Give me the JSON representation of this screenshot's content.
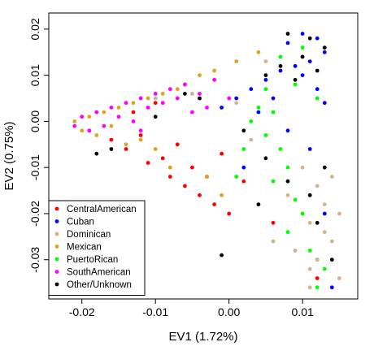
{
  "chart_data": {
    "type": "scatter",
    "xlabel": "EV1 (1.72%)",
    "ylabel": "EV2 (0.75%)",
    "xlim": [
      -0.0245,
      0.0175
    ],
    "ylim": [
      -0.0385,
      0.0235
    ],
    "xticks": [
      {
        "value": -0.02,
        "label": "-0.02"
      },
      {
        "value": -0.01,
        "label": "-0.01"
      },
      {
        "value": 0.0,
        "label": "0.00"
      },
      {
        "value": 0.01,
        "label": "0.01"
      }
    ],
    "yticks": [
      {
        "value": 0.02,
        "label": "0.02"
      },
      {
        "value": 0.01,
        "label": "0.01"
      },
      {
        "value": 0.0,
        "label": "0.00"
      },
      {
        "value": -0.01,
        "label": "-0.01"
      },
      {
        "value": -0.02,
        "label": "-0.02"
      },
      {
        "value": -0.03,
        "label": "-0.03"
      }
    ],
    "grid": false,
    "legend_position": "bottom-left",
    "series": [
      {
        "name": "CentralAmerican",
        "color": "#ff0000",
        "points": [
          [
            -0.019,
            -0.002
          ],
          [
            -0.016,
            -0.004
          ],
          [
            -0.014,
            -0.006
          ],
          [
            -0.012,
            -0.003
          ],
          [
            -0.011,
            -0.009
          ],
          [
            -0.009,
            -0.008
          ],
          [
            -0.008,
            -0.012
          ],
          [
            -0.007,
            -0.005
          ],
          [
            -0.006,
            -0.014
          ],
          [
            -0.005,
            -0.01
          ],
          [
            -0.004,
            -0.016
          ],
          [
            -0.003,
            -0.012
          ],
          [
            -0.002,
            -0.018
          ],
          [
            -0.001,
            -0.007
          ],
          [
            0.0,
            -0.02
          ],
          [
            0.002,
            -0.013
          ],
          [
            0.006,
            -0.022
          ],
          [
            0.012,
            -0.034
          ],
          [
            -0.013,
            0.002
          ],
          [
            -0.01,
            0.004
          ]
        ]
      },
      {
        "name": "Cuban",
        "color": "#0000ff",
        "points": [
          [
            0.008,
            0.017
          ],
          [
            0.01,
            0.019
          ],
          [
            0.012,
            0.018
          ],
          [
            0.013,
            0.015
          ],
          [
            0.011,
            0.013
          ],
          [
            0.009,
            0.012
          ],
          [
            0.007,
            0.011
          ],
          [
            0.005,
            0.009
          ],
          [
            0.003,
            0.007
          ],
          [
            0.001,
            0.005
          ],
          [
            -0.001,
            0.003
          ],
          [
            0.004,
            0.002
          ],
          [
            0.006,
            0.005
          ],
          [
            0.01,
            0.01
          ],
          [
            0.012,
            0.007
          ],
          [
            0.013,
            0.004
          ],
          [
            0.008,
            -0.002
          ],
          [
            0.011,
            -0.006
          ],
          [
            0.013,
            -0.02
          ],
          [
            0.012,
            -0.03
          ],
          [
            0.014,
            -0.036
          ],
          [
            0.002,
            -0.01
          ]
        ]
      },
      {
        "name": "Dominican",
        "color": "#d2b48c",
        "points": [
          [
            0.01,
            -0.01
          ],
          [
            0.012,
            -0.014
          ],
          [
            0.013,
            -0.018
          ],
          [
            0.011,
            -0.022
          ],
          [
            0.014,
            -0.026
          ],
          [
            0.012,
            -0.03
          ],
          [
            0.015,
            -0.034
          ],
          [
            0.013,
            -0.024
          ],
          [
            0.01,
            -0.02
          ],
          [
            0.008,
            -0.016
          ],
          [
            0.009,
            -0.028
          ],
          [
            0.006,
            -0.026
          ],
          [
            0.014,
            -0.012
          ],
          [
            0.015,
            -0.02
          ],
          [
            0.011,
            -0.032
          ],
          [
            0.003,
            -0.004
          ],
          [
            0.001,
            0.004
          ],
          [
            -0.005,
            0.006
          ],
          [
            -0.01,
            0.005
          ],
          [
            0.005,
            0.013
          ],
          [
            0.011,
            -0.036
          ]
        ]
      },
      {
        "name": "Mexican",
        "color": "#daa520",
        "points": [
          [
            -0.021,
            0.0
          ],
          [
            -0.02,
            -0.002
          ],
          [
            -0.019,
            0.001
          ],
          [
            -0.018,
            -0.003
          ],
          [
            -0.017,
            0.002
          ],
          [
            -0.016,
            -0.001
          ],
          [
            -0.015,
            0.003
          ],
          [
            -0.014,
            -0.005
          ],
          [
            -0.013,
            0.004
          ],
          [
            -0.012,
            -0.004
          ],
          [
            -0.011,
            0.005
          ],
          [
            -0.01,
            -0.006
          ],
          [
            -0.009,
            0.006
          ],
          [
            -0.008,
            -0.01
          ],
          [
            -0.007,
            0.007
          ],
          [
            -0.006,
            0.008
          ],
          [
            -0.004,
            0.01
          ],
          [
            -0.002,
            0.011
          ],
          [
            0.001,
            0.013
          ],
          [
            0.004,
            0.015
          ],
          [
            -0.003,
            -0.012
          ],
          [
            -0.001,
            -0.016
          ]
        ]
      },
      {
        "name": "PuertoRican",
        "color": "#00ff00",
        "points": [
          [
            0.004,
            0.003
          ],
          [
            0.006,
            0.002
          ],
          [
            0.003,
            0.0
          ],
          [
            0.005,
            -0.003
          ],
          [
            0.007,
            -0.006
          ],
          [
            0.008,
            -0.01
          ],
          [
            0.006,
            -0.013
          ],
          [
            0.009,
            -0.017
          ],
          [
            0.01,
            -0.02
          ],
          [
            0.008,
            -0.024
          ],
          [
            0.011,
            -0.028
          ],
          [
            0.013,
            -0.032
          ],
          [
            0.012,
            -0.036
          ],
          [
            0.002,
            -0.006
          ],
          [
            0.001,
            -0.012
          ],
          [
            0.005,
            0.007
          ],
          [
            0.009,
            0.008
          ],
          [
            0.012,
            0.005
          ],
          [
            0.007,
            0.014
          ],
          [
            0.01,
            0.016
          ]
        ]
      },
      {
        "name": "SouthAmerican",
        "color": "#ff00ff",
        "points": [
          [
            -0.021,
            -0.001
          ],
          [
            -0.02,
            0.001
          ],
          [
            -0.019,
            -0.002
          ],
          [
            -0.018,
            0.002
          ],
          [
            -0.017,
            -0.001
          ],
          [
            -0.016,
            0.003
          ],
          [
            -0.015,
            0.001
          ],
          [
            -0.014,
            0.004
          ],
          [
            -0.013,
            0.0
          ],
          [
            -0.012,
            0.005
          ],
          [
            -0.011,
            0.003
          ],
          [
            -0.01,
            0.006
          ],
          [
            -0.009,
            0.004
          ],
          [
            -0.008,
            0.007
          ],
          [
            -0.007,
            0.005
          ],
          [
            -0.006,
            0.008
          ],
          [
            -0.005,
            0.002
          ],
          [
            -0.004,
            0.006
          ],
          [
            -0.003,
            0.003
          ],
          [
            -0.002,
            0.009
          ],
          [
            0.0,
            0.005
          ],
          [
            -0.012,
            -0.002
          ]
        ]
      },
      {
        "name": "Other/Unknown",
        "color": "#000000",
        "points": [
          [
            0.008,
            0.019
          ],
          [
            0.011,
            0.018
          ],
          [
            0.013,
            0.016
          ],
          [
            0.01,
            0.014
          ],
          [
            0.012,
            0.011
          ],
          [
            0.009,
            0.009
          ],
          [
            0.007,
            0.012
          ],
          [
            -0.006,
            0.006
          ],
          [
            -0.01,
            0.001
          ],
          [
            -0.016,
            -0.006
          ],
          [
            -0.018,
            -0.007
          ],
          [
            0.002,
            -0.002
          ],
          [
            0.005,
            -0.008
          ],
          [
            0.012,
            -0.022
          ],
          [
            0.011,
            -0.016
          ],
          [
            -0.001,
            -0.029
          ],
          [
            0.004,
            -0.018
          ],
          [
            0.013,
            -0.01
          ],
          [
            0.014,
            -0.03
          ],
          [
            0.008,
            -0.013
          ],
          [
            -0.004,
            0.005
          ],
          [
            0.005,
            0.01
          ]
        ]
      }
    ]
  }
}
